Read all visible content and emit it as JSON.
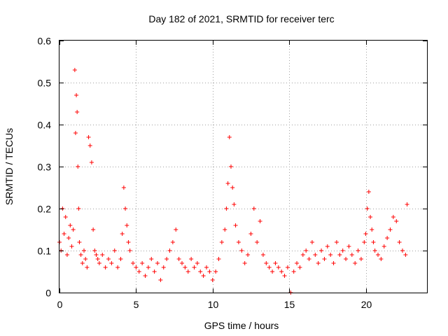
{
  "chart_data": {
    "type": "scatter",
    "title": "Day 182 of 2021, SRMTID for receiver terc",
    "xlabel": "GPS time / hours",
    "ylabel": "SRMTID / TECUs",
    "xlim": [
      0,
      24
    ],
    "ylim": [
      0,
      0.6
    ],
    "xticks": [
      0,
      5,
      10,
      15,
      20
    ],
    "yticks": [
      0,
      0.1,
      0.2,
      0.3,
      0.4,
      0.5,
      0.6
    ],
    "xtick_labels": [
      "0",
      "5",
      "10",
      "15",
      "20"
    ],
    "ytick_labels": [
      "0",
      "0.1",
      "0.2",
      "0.3",
      "0.4",
      "0.5",
      "0.6"
    ],
    "grid": true,
    "marker": "+",
    "color": "#ff0000",
    "series": [
      {
        "name": "SRMTID",
        "x": [
          0.0,
          0.1,
          0.2,
          0.3,
          0.4,
          0.5,
          0.6,
          0.7,
          0.8,
          0.9,
          1.0,
          1.05,
          1.1,
          1.15,
          1.2,
          1.25,
          1.3,
          1.4,
          1.5,
          1.6,
          1.7,
          1.8,
          1.9,
          2.0,
          2.1,
          2.2,
          2.3,
          2.4,
          2.5,
          2.6,
          2.8,
          3.0,
          3.2,
          3.4,
          3.6,
          3.8,
          4.0,
          4.1,
          4.2,
          4.3,
          4.4,
          4.5,
          4.6,
          4.8,
          5.0,
          5.2,
          5.4,
          5.6,
          5.8,
          6.0,
          6.2,
          6.4,
          6.6,
          6.8,
          7.0,
          7.2,
          7.4,
          7.6,
          7.8,
          8.0,
          8.2,
          8.4,
          8.6,
          8.8,
          9.0,
          9.2,
          9.4,
          9.6,
          9.8,
          10.0,
          10.2,
          10.4,
          10.6,
          10.8,
          10.9,
          11.0,
          11.1,
          11.2,
          11.3,
          11.4,
          11.5,
          11.7,
          11.9,
          12.1,
          12.3,
          12.5,
          12.7,
          12.9,
          13.1,
          13.3,
          13.5,
          13.7,
          13.9,
          14.1,
          14.3,
          14.5,
          14.7,
          14.9,
          15.1,
          15.3,
          15.5,
          15.7,
          15.9,
          16.1,
          16.3,
          16.5,
          16.7,
          16.9,
          17.1,
          17.3,
          17.5,
          17.7,
          17.9,
          18.1,
          18.3,
          18.5,
          18.7,
          18.9,
          19.1,
          19.3,
          19.5,
          19.7,
          19.9,
          20.0,
          20.1,
          20.2,
          20.3,
          20.4,
          20.5,
          20.6,
          20.8,
          21.0,
          21.2,
          21.4,
          21.6,
          21.8,
          22.0,
          22.2,
          22.4,
          22.6,
          22.7
        ],
        "y": [
          0.12,
          0.1,
          0.2,
          0.14,
          0.18,
          0.09,
          0.13,
          0.16,
          0.11,
          0.15,
          0.53,
          0.38,
          0.47,
          0.43,
          0.3,
          0.2,
          0.12,
          0.09,
          0.07,
          0.1,
          0.08,
          0.06,
          0.37,
          0.35,
          0.31,
          0.15,
          0.1,
          0.09,
          0.08,
          0.07,
          0.09,
          0.06,
          0.08,
          0.07,
          0.1,
          0.06,
          0.08,
          0.14,
          0.25,
          0.2,
          0.16,
          0.12,
          0.1,
          0.07,
          0.06,
          0.05,
          0.07,
          0.04,
          0.06,
          0.08,
          0.05,
          0.07,
          0.03,
          0.06,
          0.08,
          0.1,
          0.12,
          0.15,
          0.08,
          0.07,
          0.06,
          0.05,
          0.08,
          0.06,
          0.07,
          0.05,
          0.04,
          0.06,
          0.05,
          0.03,
          0.05,
          0.08,
          0.12,
          0.15,
          0.2,
          0.26,
          0.37,
          0.3,
          0.25,
          0.21,
          0.16,
          0.12,
          0.1,
          0.07,
          0.09,
          0.14,
          0.2,
          0.12,
          0.17,
          0.09,
          0.07,
          0.06,
          0.05,
          0.07,
          0.06,
          0.05,
          0.04,
          0.06,
          0.0,
          0.05,
          0.07,
          0.06,
          0.09,
          0.1,
          0.08,
          0.12,
          0.09,
          0.07,
          0.1,
          0.08,
          0.11,
          0.09,
          0.07,
          0.12,
          0.09,
          0.1,
          0.08,
          0.11,
          0.09,
          0.07,
          0.1,
          0.08,
          0.12,
          0.14,
          0.2,
          0.24,
          0.18,
          0.15,
          0.12,
          0.1,
          0.09,
          0.08,
          0.11,
          0.13,
          0.15,
          0.18,
          0.17,
          0.12,
          0.1,
          0.09,
          0.21
        ]
      }
    ]
  }
}
